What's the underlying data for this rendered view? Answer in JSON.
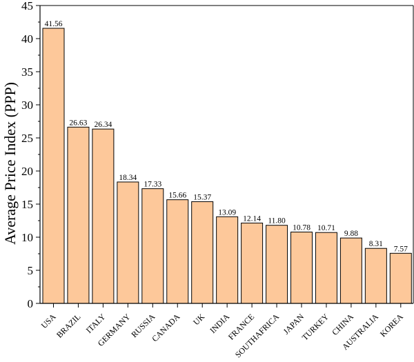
{
  "chart_data": {
    "type": "bar",
    "title": "",
    "xlabel": "",
    "ylabel": "Average Price Index (PPP)",
    "ylim": [
      0,
      45
    ],
    "yticks": [
      0,
      5,
      10,
      15,
      20,
      25,
      30,
      35,
      40,
      45
    ],
    "grid": false,
    "legend": "none",
    "bar_color": "#FDC89A",
    "bar_edge_color": "#000000",
    "categories": [
      "USA",
      "BRAZIL",
      "ITALY",
      "GERMANY",
      "RUSSIA",
      "CANADA",
      "UK",
      "INDIA",
      "FRANCE",
      "SOUTHAFRICA",
      "JAPAN",
      "TURKEY",
      "CHINA",
      "AUSTRALIA",
      "KOREA"
    ],
    "values": [
      41.56,
      26.63,
      26.34,
      18.34,
      17.33,
      15.66,
      15.37,
      13.09,
      12.14,
      11.8,
      10.78,
      10.71,
      9.88,
      8.31,
      7.57
    ],
    "value_labels": [
      "41.56",
      "26.63",
      "26.34",
      "18.34",
      "17.33",
      "15.66",
      "15.37",
      "13.09",
      "12.14",
      "11.80",
      "10.78",
      "10.71",
      "9.88",
      "8.31",
      "7.57"
    ]
  }
}
